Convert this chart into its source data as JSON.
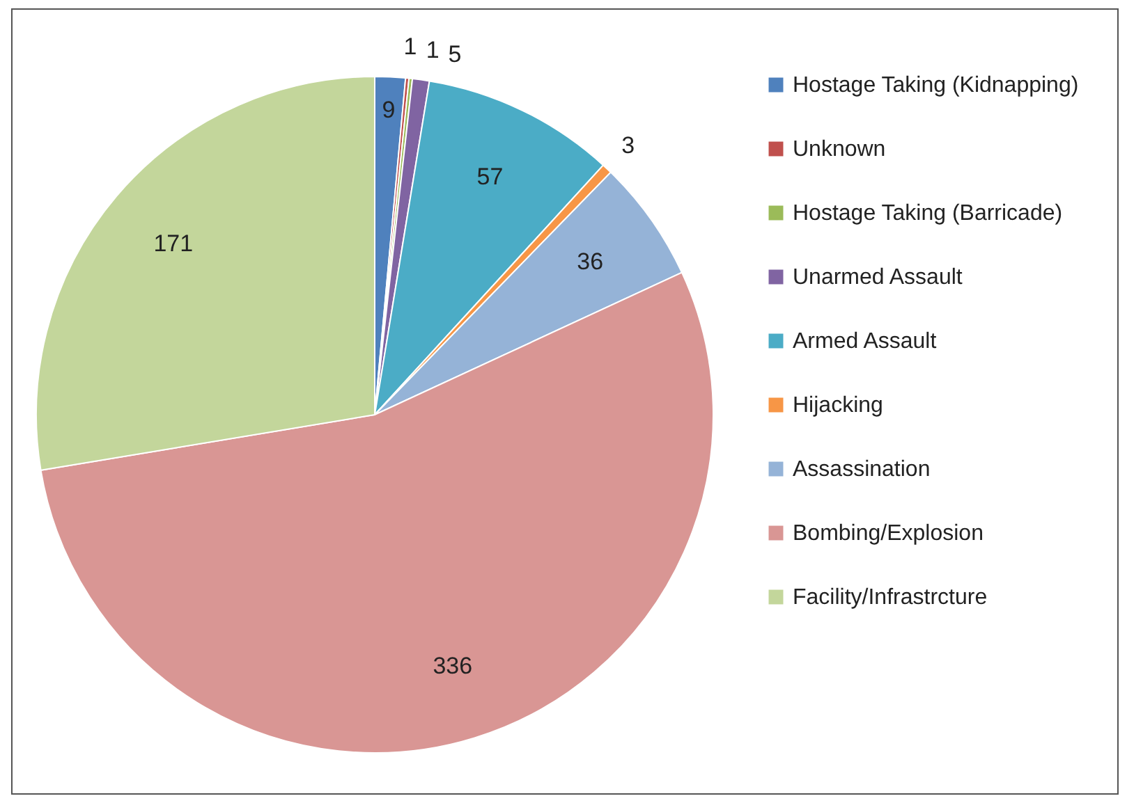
{
  "chart_data": {
    "type": "pie",
    "categories": [
      "Hostage Taking (Kidnapping)",
      "Unknown",
      "Hostage Taking (Barricade)",
      "Unarmed Assault",
      "Armed Assault",
      "Hijacking",
      "Assassination",
      "Bombing/Explosion",
      "Facility/Infrastrcture"
    ],
    "values": [
      9,
      1,
      1,
      5,
      57,
      3,
      36,
      336,
      171
    ],
    "colors": [
      "#4f81bd",
      "#c0504d",
      "#9bbb59",
      "#8064a2",
      "#4bacc6",
      "#f79646",
      "#95b3d7",
      "#d99694",
      "#c3d69b"
    ],
    "data_labels": true,
    "legend": "right"
  }
}
